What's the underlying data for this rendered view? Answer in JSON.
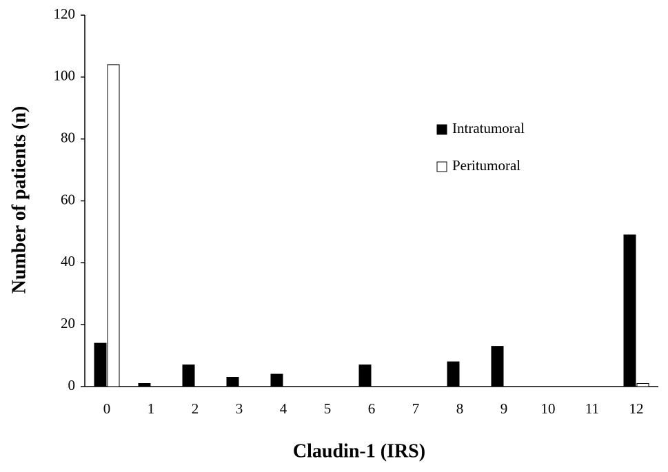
{
  "chart_data": {
    "type": "bar",
    "x_label": "Claudin-1 (IRS)",
    "y_label": "Number of patients (n)",
    "categories": [
      "0",
      "1",
      "2",
      "3",
      "4",
      "5",
      "6",
      "7",
      "8",
      "9",
      "10",
      "11",
      "12"
    ],
    "series": [
      {
        "name": "Intratumoral",
        "color": "#000000",
        "values": [
          14,
          1,
          7,
          3,
          4,
          0,
          7,
          0,
          8,
          13,
          0,
          0,
          49
        ]
      },
      {
        "name": "Peritumoral",
        "color": "#ffffff",
        "values": [
          104,
          0,
          0,
          0,
          0,
          0,
          0,
          0,
          0,
          0,
          0,
          0,
          1
        ]
      }
    ],
    "ylim": [
      0,
      120
    ],
    "yticks": [
      0,
      20,
      40,
      60,
      80,
      100,
      120
    ],
    "grid": false
  }
}
